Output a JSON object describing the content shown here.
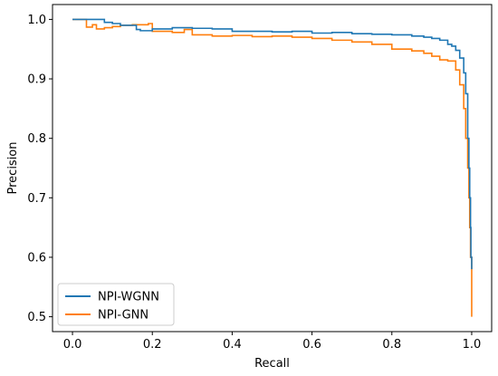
{
  "chart_data": {
    "type": "line",
    "title": "",
    "xlabel": "Recall",
    "ylabel": "Precision",
    "xlim": [
      -0.05,
      1.05
    ],
    "ylim": [
      0.475,
      1.025
    ],
    "xticks": [
      0.0,
      0.2,
      0.4,
      0.6,
      0.8,
      1.0
    ],
    "xtick_labels": [
      "0.0",
      "0.2",
      "0.4",
      "0.6",
      "0.8",
      "1.0"
    ],
    "yticks": [
      0.5,
      0.6,
      0.7,
      0.8,
      0.9,
      1.0
    ],
    "ytick_labels": [
      "0.5",
      "0.6",
      "0.7",
      "0.8",
      "0.9",
      "1.0"
    ],
    "grid": false,
    "legend_position": "lower-left",
    "series": [
      {
        "name": "NPI-WGNN",
        "color": "#1f77b4",
        "x": [
          0.0,
          0.07,
          0.08,
          0.1,
          0.12,
          0.15,
          0.16,
          0.17,
          0.2,
          0.25,
          0.3,
          0.35,
          0.4,
          0.45,
          0.5,
          0.55,
          0.6,
          0.65,
          0.7,
          0.75,
          0.8,
          0.85,
          0.88,
          0.9,
          0.92,
          0.94,
          0.95,
          0.96,
          0.97,
          0.98,
          0.985,
          0.99,
          0.993,
          0.995,
          0.997,
          0.998,
          1.0
        ],
        "y": [
          1.0,
          1.0,
          0.995,
          0.993,
          0.99,
          0.99,
          0.983,
          0.981,
          0.984,
          0.986,
          0.985,
          0.984,
          0.98,
          0.98,
          0.979,
          0.98,
          0.977,
          0.978,
          0.976,
          0.975,
          0.974,
          0.972,
          0.97,
          0.968,
          0.965,
          0.958,
          0.955,
          0.948,
          0.935,
          0.91,
          0.875,
          0.8,
          0.75,
          0.7,
          0.65,
          0.6,
          0.58
        ]
      },
      {
        "name": "NPI-GNN",
        "color": "#ff7f0e",
        "x": [
          0.0,
          0.03,
          0.035,
          0.05,
          0.06,
          0.08,
          0.1,
          0.12,
          0.15,
          0.19,
          0.2,
          0.25,
          0.28,
          0.3,
          0.35,
          0.4,
          0.45,
          0.5,
          0.55,
          0.6,
          0.65,
          0.7,
          0.75,
          0.8,
          0.85,
          0.88,
          0.9,
          0.92,
          0.94,
          0.96,
          0.97,
          0.98,
          0.985,
          0.99,
          0.993,
          0.995,
          0.997,
          1.0
        ],
        "y": [
          1.0,
          1.0,
          0.987,
          0.991,
          0.984,
          0.986,
          0.988,
          0.99,
          0.991,
          0.993,
          0.98,
          0.978,
          0.983,
          0.974,
          0.972,
          0.973,
          0.971,
          0.972,
          0.97,
          0.968,
          0.965,
          0.962,
          0.958,
          0.95,
          0.947,
          0.943,
          0.938,
          0.932,
          0.93,
          0.915,
          0.89,
          0.85,
          0.8,
          0.75,
          0.7,
          0.65,
          0.6,
          0.5
        ]
      }
    ]
  }
}
